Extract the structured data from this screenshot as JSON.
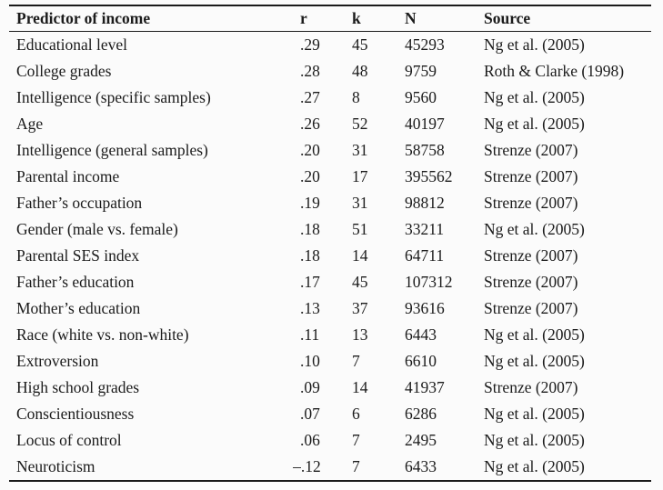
{
  "table": {
    "columns": [
      "Predictor of income",
      "r",
      "k",
      "N",
      "Source"
    ],
    "rows": [
      [
        "Educational level",
        ".29",
        "45",
        "45293",
        "Ng et al. (2005)"
      ],
      [
        "College grades",
        ".28",
        "48",
        "9759",
        "Roth & Clarke (1998)"
      ],
      [
        "Intelligence (specific samples)",
        ".27",
        "8",
        "9560",
        "Ng et al. (2005)"
      ],
      [
        "Age",
        ".26",
        "52",
        "40197",
        "Ng et al. (2005)"
      ],
      [
        "Intelligence (general samples)",
        ".20",
        "31",
        "58758",
        "Strenze (2007)"
      ],
      [
        "Parental income",
        ".20",
        "17",
        "395562",
        "Strenze (2007)"
      ],
      [
        "Father’s occupation",
        ".19",
        "31",
        "98812",
        "Strenze (2007)"
      ],
      [
        "Gender (male vs. female)",
        ".18",
        "51",
        "33211",
        "Ng et al. (2005)"
      ],
      [
        "Parental SES index",
        ".18",
        "14",
        "64711",
        "Strenze (2007)"
      ],
      [
        "Father’s education",
        ".17",
        "45",
        "107312",
        "Strenze (2007)"
      ],
      [
        "Mother’s education",
        ".13",
        "37",
        "93616",
        "Strenze (2007)"
      ],
      [
        "Race (white vs. non-white)",
        ".11",
        "13",
        "6443",
        "Ng et al. (2005)"
      ],
      [
        "Extroversion",
        ".10",
        "7",
        "6610",
        "Ng et al. (2005)"
      ],
      [
        "High school grades",
        ".09",
        "14",
        "41937",
        "Strenze (2007)"
      ],
      [
        "Conscientiousness",
        ".07",
        "6",
        "6286",
        "Ng et al. (2005)"
      ],
      [
        "Locus of control",
        ".06",
        "7",
        "2495",
        "Ng et al. (2005)"
      ],
      [
        "Neuroticism",
        "–.12",
        "7",
        "6433",
        "Ng et al. (2005)"
      ]
    ]
  },
  "colors": {
    "background": "#fbfbfb",
    "text": "#1b1b1b",
    "rule": "#1a1a1a"
  }
}
